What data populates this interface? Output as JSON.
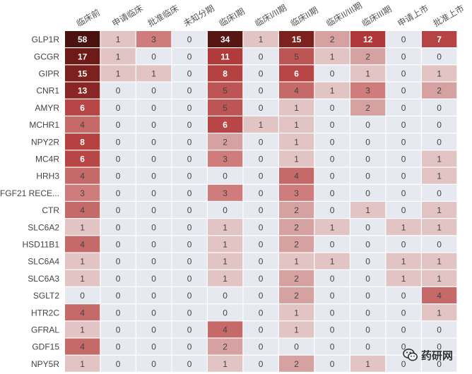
{
  "chart_data": {
    "type": "heatmap",
    "title": "",
    "columns": [
      "临床前",
      "申请临床",
      "批准临床",
      "未知分期",
      "临床I期",
      "临床I/II期",
      "临床II期",
      "临床II/III期",
      "临床III期",
      "申请上市",
      "批准上市"
    ],
    "rows": [
      "GLP1R",
      "GCGR",
      "GIPR",
      "CNR1",
      "AMYR",
      "MCHR1",
      "NPY2R",
      "MC4R",
      "HRH3",
      "FGF21 RECE...",
      "CTR",
      "SLC6A2",
      "HSD11B1",
      "SLC6A4",
      "SLC6A3",
      "SGLT2",
      "HTR2C",
      "GFRAL",
      "GDF15",
      "NPY5R"
    ],
    "values": [
      [
        58,
        1,
        3,
        0,
        34,
        1,
        15,
        2,
        12,
        0,
        7
      ],
      [
        17,
        1,
        0,
        0,
        11,
        0,
        5,
        1,
        2,
        0,
        0
      ],
      [
        15,
        1,
        1,
        0,
        8,
        0,
        6,
        0,
        1,
        0,
        1
      ],
      [
        13,
        0,
        0,
        0,
        5,
        0,
        4,
        1,
        3,
        0,
        2
      ],
      [
        6,
        0,
        0,
        0,
        5,
        0,
        1,
        0,
        2,
        0,
        0
      ],
      [
        4,
        0,
        0,
        0,
        6,
        1,
        1,
        0,
        0,
        0,
        0
      ],
      [
        8,
        0,
        0,
        0,
        2,
        0,
        1,
        0,
        0,
        0,
        0
      ],
      [
        6,
        0,
        0,
        0,
        3,
        0,
        1,
        0,
        0,
        0,
        1
      ],
      [
        4,
        0,
        0,
        0,
        0,
        0,
        4,
        0,
        0,
        0,
        1
      ],
      [
        3,
        0,
        0,
        0,
        3,
        0,
        3,
        0,
        0,
        0,
        0
      ],
      [
        4,
        0,
        0,
        0,
        0,
        0,
        2,
        0,
        1,
        0,
        1
      ],
      [
        1,
        0,
        0,
        0,
        1,
        0,
        2,
        1,
        0,
        1,
        1
      ],
      [
        4,
        0,
        0,
        0,
        1,
        0,
        2,
        0,
        0,
        0,
        0
      ],
      [
        1,
        0,
        0,
        0,
        1,
        0,
        1,
        1,
        0,
        1,
        1
      ],
      [
        1,
        0,
        0,
        0,
        1,
        0,
        2,
        0,
        0,
        1,
        1
      ],
      [
        0,
        0,
        0,
        0,
        0,
        0,
        2,
        0,
        0,
        0,
        4
      ],
      [
        4,
        0,
        0,
        0,
        0,
        0,
        1,
        0,
        0,
        0,
        1
      ],
      [
        1,
        0,
        0,
        0,
        4,
        0,
        1,
        0,
        0,
        0,
        0
      ],
      [
        4,
        0,
        0,
        0,
        2,
        0,
        0,
        0,
        0,
        0,
        0
      ],
      [
        1,
        0,
        0,
        0,
        1,
        0,
        2,
        0,
        1,
        0,
        0
      ]
    ],
    "colors": {
      "zero": "#e6eaf0",
      "low": "#e2c4c4",
      "high": "#b03838",
      "darkest": "#4a1310",
      "text_dark": "#444444",
      "text_light": "#ffffff"
    },
    "grid": false,
    "legend": "none"
  },
  "watermark": {
    "text": "药研网",
    "icon": "wechat-logo-icon"
  }
}
